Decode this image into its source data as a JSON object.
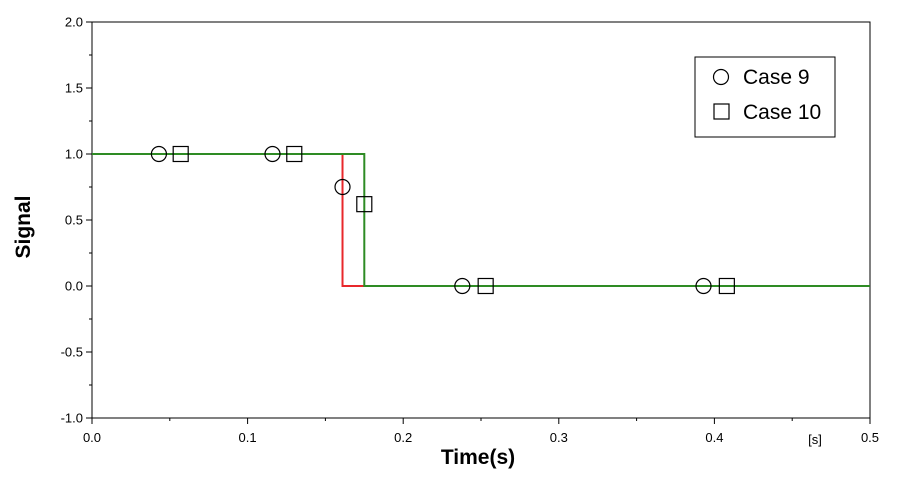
{
  "chart_data": {
    "type": "line",
    "title": "",
    "xlabel": "Time(s)",
    "x_unit": "[s]",
    "ylabel": "Signal",
    "xlim": [
      0.0,
      0.5
    ],
    "ylim": [
      -1.0,
      2.0
    ],
    "x_ticks": [
      "0.0",
      "0.1",
      "0.2",
      "0.3",
      "0.4",
      "0.5"
    ],
    "x_tick_values": [
      0.0,
      0.1,
      0.2,
      0.3,
      0.4,
      0.5
    ],
    "y_ticks": [
      "2.0",
      "1.5",
      "1.0",
      "0.5",
      "0.0",
      "-0.5",
      "-1.0"
    ],
    "y_tick_values": [
      2.0,
      1.5,
      1.0,
      0.5,
      0.0,
      -0.5,
      -1.0
    ],
    "grid": false,
    "legend_position": "top-right",
    "series": [
      {
        "name": "Case 9",
        "color": "#e8282b",
        "marker": "circle",
        "x": [
          0.0,
          0.161,
          0.161,
          0.5
        ],
        "y": [
          1.0,
          1.0,
          0.0,
          0.0
        ],
        "marker_x": [
          0.043,
          0.116,
          0.161,
          0.238,
          0.393
        ],
        "marker_y": [
          1.0,
          1.0,
          0.75,
          0.0,
          0.0
        ]
      },
      {
        "name": "Case 10",
        "color": "#2e8b24",
        "marker": "square",
        "x": [
          0.0,
          0.175,
          0.175,
          0.5
        ],
        "y": [
          1.0,
          1.0,
          0.0,
          0.0
        ],
        "marker_x": [
          0.057,
          0.13,
          0.175,
          0.253,
          0.408
        ],
        "marker_y": [
          1.0,
          1.0,
          0.62,
          0.0,
          0.0
        ]
      }
    ],
    "legend": [
      "Case 9",
      "Case 10"
    ]
  }
}
